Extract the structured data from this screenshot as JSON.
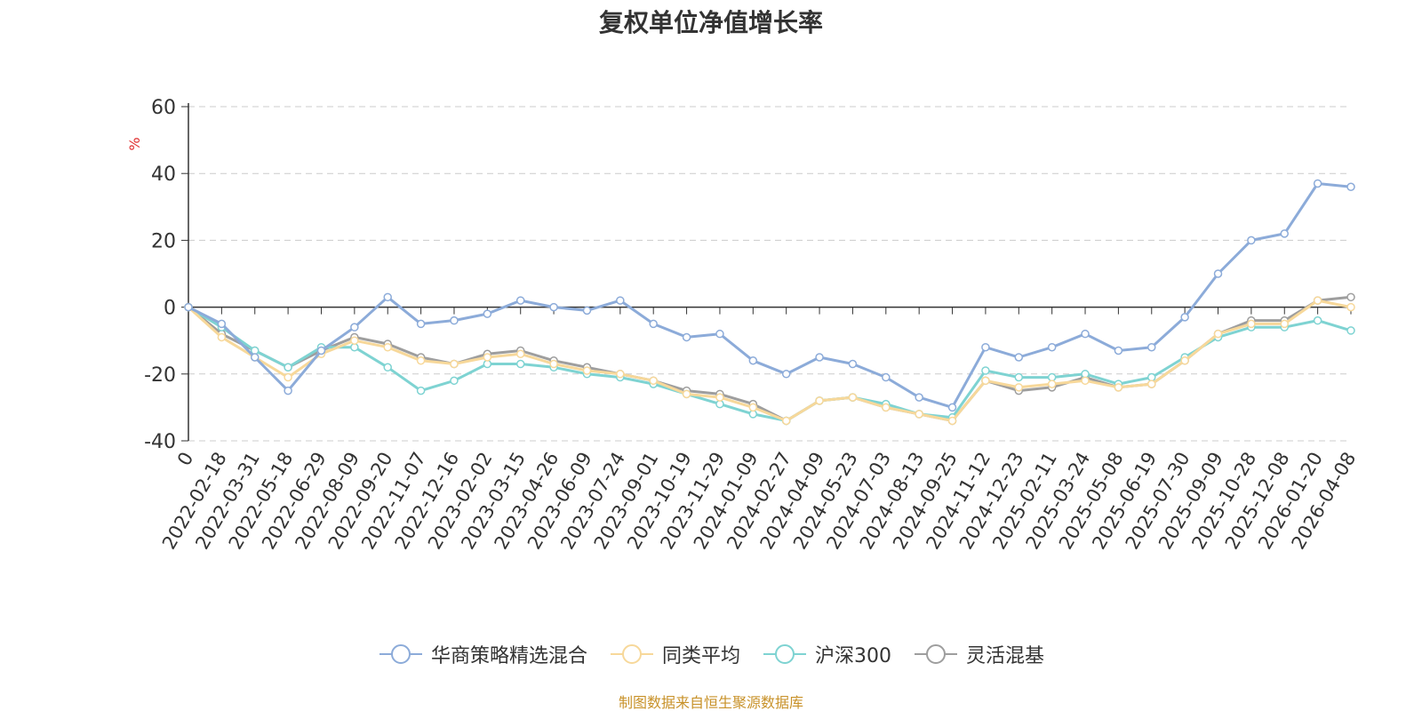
{
  "chart_data": {
    "type": "line",
    "title": "复权单位净值增长率",
    "ylabel": "%",
    "xlabel": "",
    "ylim": [
      -40,
      60
    ],
    "yticks": [
      60,
      40,
      20,
      0,
      -20,
      -40
    ],
    "grid": true,
    "legend_position": "bottom",
    "categories": [
      "0",
      "2022-02-18",
      "2022-03-31",
      "2022-05-18",
      "2022-06-29",
      "2022-08-09",
      "2022-09-20",
      "2022-11-07",
      "2022-12-16",
      "2023-02-02",
      "2023-03-15",
      "2023-04-26",
      "2023-06-09",
      "2023-07-24",
      "2023-09-01",
      "2023-10-19",
      "2023-11-29",
      "2024-01-09",
      "2024-02-27",
      "2024-04-09",
      "2024-05-23",
      "2024-07-03",
      "2024-08-13",
      "2024-09-25",
      "2024-11-12",
      "2024-12-23",
      "2025-02-11",
      "2025-03-24",
      "2025-05-08",
      "2025-06-19",
      "2025-07-30",
      "2025-09-09",
      "2025-10-28",
      "2025-12-08",
      "2026-01-20",
      "2026-04-08"
    ],
    "series": [
      {
        "name": "华商策略精选混合",
        "color": "#8CABD9",
        "values": [
          0,
          -5,
          -15,
          -25,
          -13,
          -6,
          3,
          -5,
          -4,
          -2,
          2,
          0,
          -1,
          2,
          -5,
          -9,
          -8,
          -16,
          -20,
          -15,
          -17,
          -21,
          -27,
          -30,
          -12,
          -15,
          -12,
          -8,
          -13,
          -12,
          -3,
          10,
          20,
          22,
          37,
          36
        ]
      },
      {
        "name": "同类平均",
        "color": "#F7D89A",
        "values": [
          0,
          -9,
          -15,
          -21,
          -14,
          -10,
          -12,
          -16,
          -17,
          -15,
          -14,
          -17,
          -19,
          -20,
          -22,
          -26,
          -27,
          -30,
          -34,
          -28,
          -27,
          -30,
          -32,
          -34,
          -22,
          -24,
          -23,
          -22,
          -24,
          -23,
          -16,
          -8,
          -5,
          -5,
          2,
          0
        ]
      },
      {
        "name": "沪深300",
        "color": "#7ED3D2",
        "values": [
          0,
          -6,
          -13,
          -18,
          -12,
          -12,
          -18,
          -25,
          -22,
          -17,
          -17,
          -18,
          -20,
          -21,
          -23,
          -26,
          -29,
          -32,
          -34,
          -28,
          -27,
          -29,
          -32,
          -33,
          -19,
          -21,
          -21,
          -20,
          -23,
          -21,
          -15,
          -9,
          -6,
          -6,
          -4,
          -7
        ]
      },
      {
        "name": "灵活混基",
        "color": "#9E9E9E",
        "values": [
          0,
          -8,
          -13,
          -18,
          -13,
          -9,
          -11,
          -15,
          -17,
          -14,
          -13,
          -16,
          -18,
          -20,
          -22,
          -25,
          -26,
          -29,
          -34,
          -28,
          -27,
          -30,
          -32,
          -34,
          -22,
          -25,
          -24,
          -21,
          -24,
          -23,
          -16,
          -8,
          -4,
          -4,
          2,
          3
        ]
      }
    ]
  },
  "source_note": "制图数据来自恒生聚源数据库",
  "colors": {
    "axis": "#333333",
    "grid": "#cccccc",
    "ylabel": "#e03030",
    "source_note": "#c8922a"
  }
}
